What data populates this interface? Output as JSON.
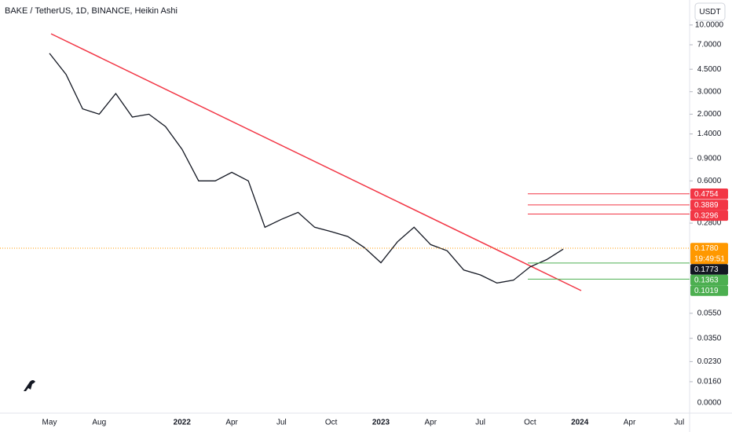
{
  "chart_data": {
    "type": "line",
    "title": "BAKE / TetherUS, 1D, BINANCE, Heikin Ashi",
    "currency": "USDT",
    "log_scale": true,
    "color": "#131722",
    "categories": [
      "May",
      null,
      null,
      "Aug",
      null,
      null,
      null,
      null,
      "2022",
      null,
      null,
      "Apr",
      null,
      null,
      "Jul",
      null,
      null,
      "Oct",
      null,
      null,
      "2023",
      null,
      null,
      "Apr",
      null,
      null,
      "Jul",
      null,
      null,
      "Oct",
      null,
      null,
      "2024",
      null,
      null,
      "Apr",
      null,
      null,
      "Jul"
    ],
    "values": [
      6.0,
      4.1,
      2.2,
      2.0,
      2.9,
      1.9,
      2.0,
      1.6,
      1.06,
      0.6,
      0.6,
      0.7,
      0.6,
      0.26,
      0.3,
      0.34,
      0.26,
      0.24,
      0.22,
      0.18,
      0.137,
      0.2,
      0.26,
      0.19,
      0.17,
      0.12,
      0.11,
      0.095,
      0.1,
      0.127,
      0.145,
      0.175,
      null,
      null,
      null,
      null,
      null,
      null,
      null
    ],
    "ylim": [
      0.0092,
      15.7
    ],
    "yticks": [
      {
        "value": 10,
        "label": "10.0000"
      },
      {
        "value": 7,
        "label": "7.0000"
      },
      {
        "value": 4.5,
        "label": "4.5000"
      },
      {
        "value": 3,
        "label": "3.0000"
      },
      {
        "value": 2,
        "label": "2.0000"
      },
      {
        "value": 1.4,
        "label": "1.4000"
      },
      {
        "value": 0.9,
        "label": "0.9000"
      },
      {
        "value": 0.6,
        "label": "0.6000"
      },
      {
        "value": 0.28,
        "label": "0.2800"
      },
      {
        "value": 0.055,
        "label": "0.0550"
      },
      {
        "value": 0.035,
        "label": "0.0350"
      },
      {
        "value": 0.023,
        "label": "0.0230"
      },
      {
        "value": 0.016,
        "label": "0.0160"
      }
    ],
    "y_floor_label": "0.0000",
    "price_labels": [
      {
        "value": 0.4754,
        "label": "0.4754",
        "color": "#f23645",
        "line": true
      },
      {
        "value": 0.3889,
        "label": "0.3889",
        "color": "#f23645",
        "line": true
      },
      {
        "value": 0.3296,
        "label": "0.3296",
        "color": "#f23645",
        "line": true
      },
      {
        "value": 0.178,
        "label": "0.1780",
        "color": "#ff9800",
        "line": false
      },
      {
        "value": 0.1773,
        "label": "0.1773",
        "color": "#131722",
        "line": false
      },
      {
        "value": 0.1363,
        "label": "0.1363",
        "color": "#4caf50",
        "line": true
      },
      {
        "value": 0.1019,
        "label": "0.1019",
        "color": "#4caf50",
        "line": true
      }
    ],
    "countdown": "19:49:51"
  }
}
